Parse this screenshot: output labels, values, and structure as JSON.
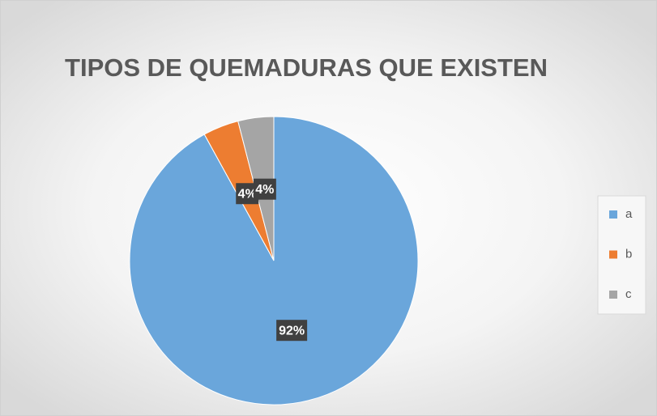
{
  "chart_data": {
    "type": "pie",
    "title": "TIPOS DE QUEMADURAS QUE EXISTEN",
    "categories": [
      "a",
      "b",
      "c"
    ],
    "values": [
      92,
      4,
      4
    ],
    "value_labels": [
      "92%",
      "4%",
      "4%"
    ],
    "colors": [
      "#6aa6db",
      "#ed7d31",
      "#a5a5a5"
    ],
    "legend": "right"
  }
}
